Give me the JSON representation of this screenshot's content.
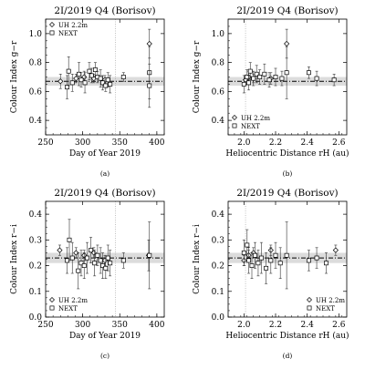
{
  "figure": {
    "panels": [
      {
        "letter": "(a)",
        "title": "2I/2019 Q4 (Borisov)",
        "xlabel": "Day of Year 2019",
        "ylabel": "Colour Index g−r",
        "legend": [
          "UH 2.2m",
          "NEXT"
        ],
        "legend_position": "top-left"
      },
      {
        "letter": "(b)",
        "title": "2I/2019 Q4 (Borisov)",
        "xlabel": "Heliocentric Distance r_H (au)",
        "ylabel": "Colour Index g−r",
        "legend": [
          "UH 2.2m",
          "NEXT"
        ],
        "legend_position": "bottom-left"
      },
      {
        "letter": "(c)",
        "title": "2I/2019 Q4 (Borisov)",
        "xlabel": "Day of Year 2019",
        "ylabel": "Colour Index r−i",
        "legend": [
          "UH 2.2m",
          "NEXT"
        ],
        "legend_position": "bottom-left"
      },
      {
        "letter": "(d)",
        "title": "2I/2019 Q4 (Borisov)",
        "xlabel": "Heliocentric Distance r_H (au)",
        "ylabel": "Colour Index r−i",
        "legend": [
          "UH 2.2m",
          "NEXT"
        ],
        "legend_position": "bottom-right"
      }
    ]
  },
  "chart_data": [
    {
      "type": "scatter",
      "title": "2I/2019 Q4 (Borisov)",
      "xlabel": "Day of Year 2019",
      "ylabel": "Colour Index g−r",
      "xlim": [
        250,
        410
      ],
      "ylim": [
        0.3,
        1.1
      ],
      "xticks": [
        250,
        300,
        350,
        400
      ],
      "yticks": [
        0.4,
        0.6,
        0.8,
        1.0
      ],
      "mean_line": 0.67,
      "mean_band": [
        0.64,
        0.7
      ],
      "vline_x": 344,
      "series": [
        {
          "name": "UH 2.2m",
          "marker": "diamond",
          "points": [
            {
              "x": 270,
              "y": 0.67,
              "err": 0.05
            },
            {
              "x": 291,
              "y": 0.69,
              "err": 0.03
            },
            {
              "x": 302,
              "y": 0.7,
              "err": 0.04
            },
            {
              "x": 315,
              "y": 0.69,
              "err": 0.03
            },
            {
              "x": 330,
              "y": 0.68,
              "err": 0.03
            },
            {
              "x": 390,
              "y": 0.93,
              "err": 0.1
            }
          ]
        },
        {
          "name": "NEXT",
          "marker": "square",
          "points": [
            {
              "x": 279,
              "y": 0.63,
              "err": 0.08
            },
            {
              "x": 281,
              "y": 0.74,
              "err": 0.1
            },
            {
              "x": 286,
              "y": 0.66,
              "err": 0.06
            },
            {
              "x": 295,
              "y": 0.72,
              "err": 0.08
            },
            {
              "x": 298,
              "y": 0.68,
              "err": 0.05
            },
            {
              "x": 303,
              "y": 0.66,
              "err": 0.07
            },
            {
              "x": 309,
              "y": 0.74,
              "err": 0.06
            },
            {
              "x": 312,
              "y": 0.71,
              "err": 0.05
            },
            {
              "x": 317,
              "y": 0.75,
              "err": 0.05
            },
            {
              "x": 320,
              "y": 0.7,
              "err": 0.04
            },
            {
              "x": 324,
              "y": 0.69,
              "err": 0.06
            },
            {
              "x": 327,
              "y": 0.66,
              "err": 0.05
            },
            {
              "x": 331,
              "y": 0.64,
              "err": 0.04
            },
            {
              "x": 334,
              "y": 0.68,
              "err": 0.05
            },
            {
              "x": 337,
              "y": 0.65,
              "err": 0.06
            },
            {
              "x": 355,
              "y": 0.7,
              "err": 0.03
            },
            {
              "x": 390,
              "y": 0.73,
              "err": 0.18
            },
            {
              "x": 390,
              "y": 0.64,
              "err": 0.15
            }
          ]
        }
      ]
    },
    {
      "type": "scatter",
      "title": "2I/2019 Q4 (Borisov)",
      "xlabel": "Heliocentric Distance r_H (au)",
      "ylabel": "Colour Index g−r",
      "xlim": [
        1.9,
        2.65
      ],
      "ylim": [
        0.3,
        1.1
      ],
      "xticks": [
        2.0,
        2.2,
        2.4,
        2.6
      ],
      "yticks": [
        0.4,
        0.6,
        0.8,
        1.0
      ],
      "mean_line": 0.67,
      "mean_band": [
        0.64,
        0.7
      ],
      "vline_x": 2.01,
      "series": [
        {
          "name": "UH 2.2m",
          "marker": "diamond",
          "points": [
            {
              "x": 2.01,
              "y": 0.68,
              "err": 0.03
            },
            {
              "x": 2.03,
              "y": 0.7,
              "err": 0.04
            },
            {
              "x": 2.06,
              "y": 0.69,
              "err": 0.03
            },
            {
              "x": 2.17,
              "y": 0.69,
              "err": 0.04
            },
            {
              "x": 2.27,
              "y": 0.93,
              "err": 0.1
            }
          ]
        },
        {
          "name": "NEXT",
          "marker": "square",
          "points": [
            {
              "x": 2.0,
              "y": 0.65,
              "err": 0.06
            },
            {
              "x": 2.02,
              "y": 0.7,
              "err": 0.05
            },
            {
              "x": 2.03,
              "y": 0.66,
              "err": 0.05
            },
            {
              "x": 2.04,
              "y": 0.74,
              "err": 0.06
            },
            {
              "x": 2.06,
              "y": 0.69,
              "err": 0.05
            },
            {
              "x": 2.08,
              "y": 0.72,
              "err": 0.06
            },
            {
              "x": 2.1,
              "y": 0.7,
              "err": 0.05
            },
            {
              "x": 2.13,
              "y": 0.72,
              "err": 0.07
            },
            {
              "x": 2.16,
              "y": 0.68,
              "err": 0.05
            },
            {
              "x": 2.2,
              "y": 0.7,
              "err": 0.06
            },
            {
              "x": 2.24,
              "y": 0.69,
              "err": 0.05
            },
            {
              "x": 2.27,
              "y": 0.73,
              "err": 0.18
            },
            {
              "x": 2.41,
              "y": 0.73,
              "err": 0.04
            },
            {
              "x": 2.46,
              "y": 0.69,
              "err": 0.05
            },
            {
              "x": 2.57,
              "y": 0.68,
              "err": 0.04
            }
          ]
        }
      ]
    },
    {
      "type": "scatter",
      "title": "2I/2019 Q4 (Borisov)",
      "xlabel": "Day of Year 2019",
      "ylabel": "Colour Index r−i",
      "xlim": [
        250,
        410
      ],
      "ylim": [
        0.0,
        0.45
      ],
      "xticks": [
        250,
        300,
        350,
        400
      ],
      "yticks": [
        0.0,
        0.1,
        0.2,
        0.3,
        0.4
      ],
      "mean_line": 0.23,
      "mean_band": [
        0.21,
        0.25
      ],
      "vline_x": 344,
      "series": [
        {
          "name": "UH 2.2m",
          "marker": "diamond",
          "points": [
            {
              "x": 269,
              "y": 0.26,
              "err": 0.02
            },
            {
              "x": 291,
              "y": 0.25,
              "err": 0.02
            },
            {
              "x": 302,
              "y": 0.24,
              "err": 0.02
            },
            {
              "x": 315,
              "y": 0.25,
              "err": 0.02
            },
            {
              "x": 330,
              "y": 0.22,
              "err": 0.02
            },
            {
              "x": 389,
              "y": 0.24,
              "err": 0.06
            }
          ]
        },
        {
          "name": "NEXT",
          "marker": "square",
          "points": [
            {
              "x": 279,
              "y": 0.22,
              "err": 0.05
            },
            {
              "x": 282,
              "y": 0.3,
              "err": 0.08
            },
            {
              "x": 286,
              "y": 0.23,
              "err": 0.06
            },
            {
              "x": 294,
              "y": 0.18,
              "err": 0.07
            },
            {
              "x": 298,
              "y": 0.21,
              "err": 0.05
            },
            {
              "x": 302,
              "y": 0.2,
              "err": 0.05
            },
            {
              "x": 306,
              "y": 0.23,
              "err": 0.06
            },
            {
              "x": 311,
              "y": 0.26,
              "err": 0.05
            },
            {
              "x": 316,
              "y": 0.21,
              "err": 0.05
            },
            {
              "x": 320,
              "y": 0.24,
              "err": 0.04
            },
            {
              "x": 324,
              "y": 0.22,
              "err": 0.05
            },
            {
              "x": 327,
              "y": 0.2,
              "err": 0.05
            },
            {
              "x": 331,
              "y": 0.19,
              "err": 0.04
            },
            {
              "x": 334,
              "y": 0.23,
              "err": 0.05
            },
            {
              "x": 337,
              "y": 0.21,
              "err": 0.05
            },
            {
              "x": 355,
              "y": 0.22,
              "err": 0.03
            },
            {
              "x": 390,
              "y": 0.24,
              "err": 0.13
            }
          ]
        }
      ]
    },
    {
      "type": "scatter",
      "title": "2I/2019 Q4 (Borisov)",
      "xlabel": "Heliocentric Distance r_H (au)",
      "ylabel": "Colour Index r−i",
      "xlim": [
        1.9,
        2.65
      ],
      "ylim": [
        0.0,
        0.45
      ],
      "xticks": [
        2.0,
        2.2,
        2.4,
        2.6
      ],
      "yticks": [
        0.0,
        0.1,
        0.2,
        0.3,
        0.4
      ],
      "mean_line": 0.23,
      "mean_band": [
        0.21,
        0.25
      ],
      "vline_x": 2.01,
      "series": [
        {
          "name": "UH 2.2m",
          "marker": "diamond",
          "points": [
            {
              "x": 2.0,
              "y": 0.22,
              "err": 0.02
            },
            {
              "x": 2.03,
              "y": 0.24,
              "err": 0.02
            },
            {
              "x": 2.06,
              "y": 0.25,
              "err": 0.02
            },
            {
              "x": 2.17,
              "y": 0.26,
              "err": 0.02
            },
            {
              "x": 2.58,
              "y": 0.26,
              "err": 0.02
            }
          ]
        },
        {
          "name": "NEXT",
          "marker": "square",
          "points": [
            {
              "x": 2.0,
              "y": 0.25,
              "err": 0.05
            },
            {
              "x": 2.02,
              "y": 0.28,
              "err": 0.06
            },
            {
              "x": 2.03,
              "y": 0.22,
              "err": 0.05
            },
            {
              "x": 2.05,
              "y": 0.2,
              "err": 0.05
            },
            {
              "x": 2.07,
              "y": 0.24,
              "err": 0.05
            },
            {
              "x": 2.09,
              "y": 0.21,
              "err": 0.05
            },
            {
              "x": 2.11,
              "y": 0.23,
              "err": 0.06
            },
            {
              "x": 2.14,
              "y": 0.19,
              "err": 0.06
            },
            {
              "x": 2.17,
              "y": 0.22,
              "err": 0.05
            },
            {
              "x": 2.2,
              "y": 0.24,
              "err": 0.05
            },
            {
              "x": 2.23,
              "y": 0.21,
              "err": 0.06
            },
            {
              "x": 2.27,
              "y": 0.24,
              "err": 0.13
            },
            {
              "x": 2.41,
              "y": 0.22,
              "err": 0.04
            },
            {
              "x": 2.46,
              "y": 0.23,
              "err": 0.04
            },
            {
              "x": 2.52,
              "y": 0.21,
              "err": 0.04
            }
          ]
        }
      ]
    }
  ]
}
